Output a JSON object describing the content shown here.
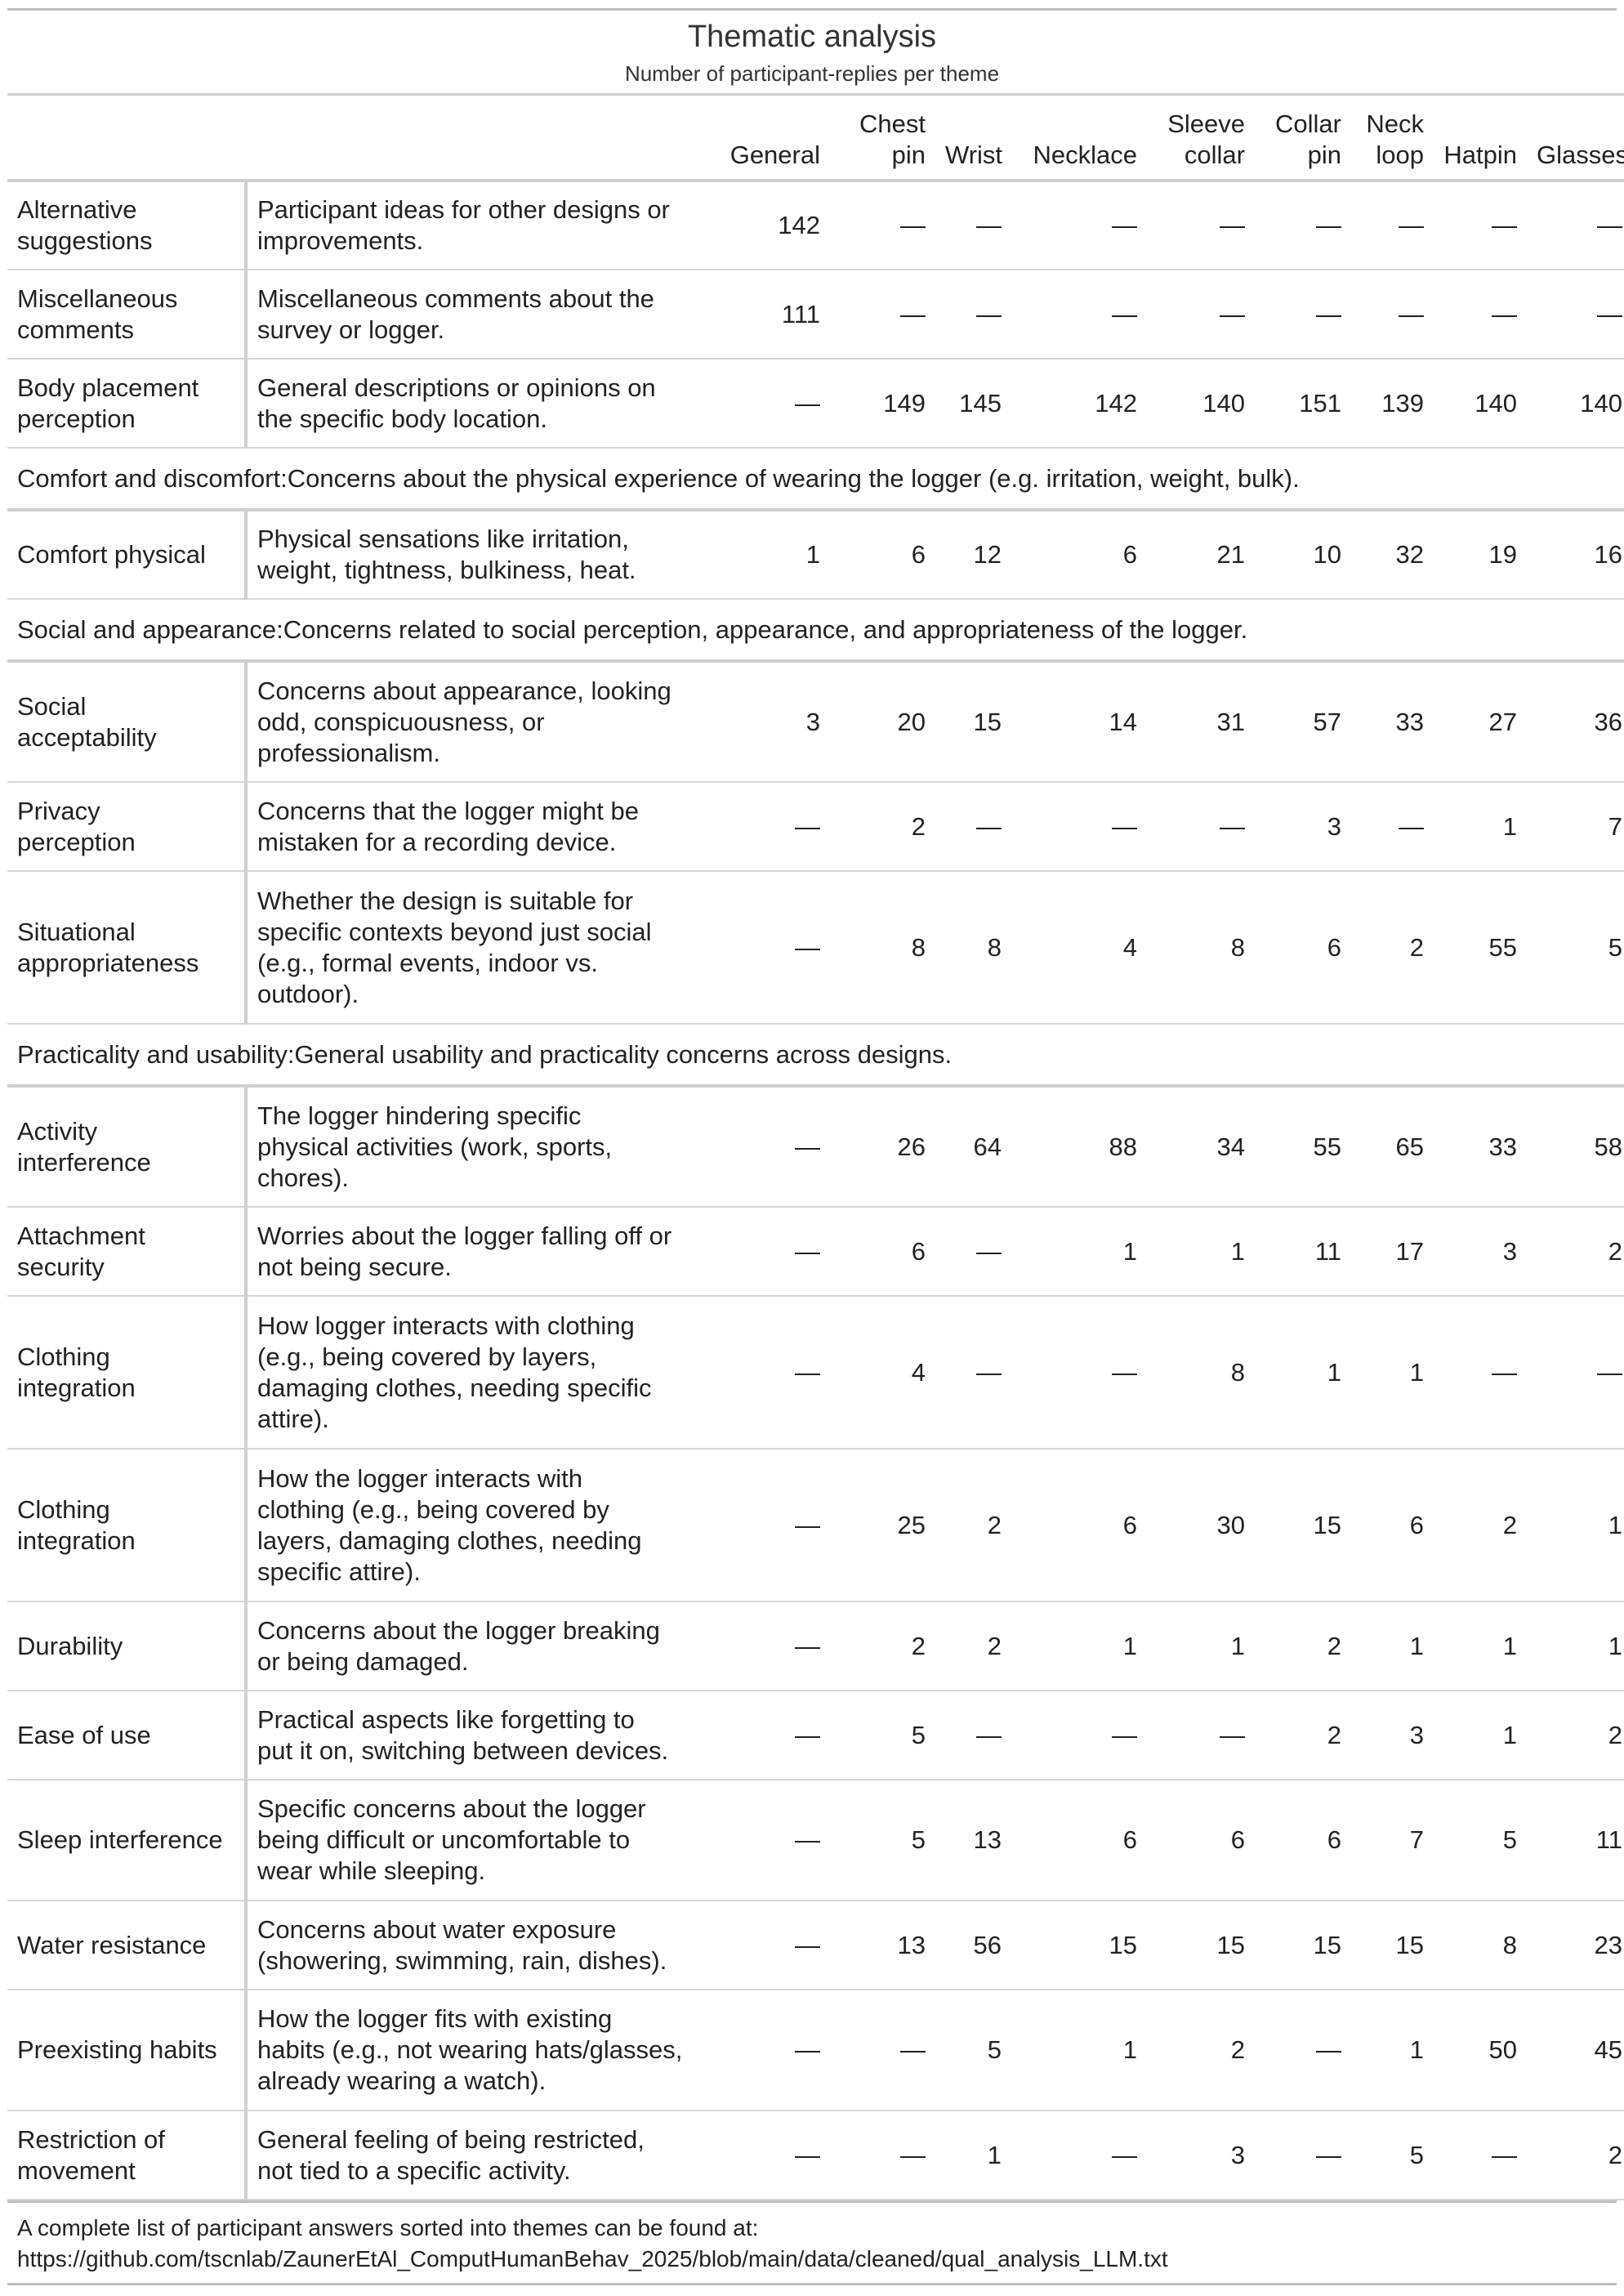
{
  "title": "Thematic analysis",
  "subtitle": "Number of participant-replies per theme",
  "columns": [
    {
      "l1": "",
      "l2": "General"
    },
    {
      "l1": "Chest",
      "l2": "pin"
    },
    {
      "l1": "",
      "l2": "Wrist"
    },
    {
      "l1": "",
      "l2": "Necklace"
    },
    {
      "l1": "Sleeve",
      "l2": "collar"
    },
    {
      "l1": "Collar",
      "l2": "pin"
    },
    {
      "l1": "Neck",
      "l2": "loop"
    },
    {
      "l1": "",
      "l2": "Hatpin"
    },
    {
      "l1": "",
      "l2": "Glasses"
    }
  ],
  "rows": [
    {
      "type": "row",
      "theme": [
        "Alternative",
        "suggestions"
      ],
      "desc": [
        "Participant ideas for other designs or",
        "improvements."
      ],
      "values": [
        "142",
        "—",
        "—",
        "—",
        "—",
        "—",
        "—",
        "—",
        "—"
      ]
    },
    {
      "type": "row",
      "theme": [
        "Miscellaneous",
        "comments"
      ],
      "desc": [
        "Miscellaneous comments about the",
        "survey or logger."
      ],
      "values": [
        "111",
        "—",
        "—",
        "—",
        "—",
        "—",
        "—",
        "—",
        "—"
      ]
    },
    {
      "type": "row",
      "theme": [
        "Body placement",
        "perception"
      ],
      "desc": [
        "General descriptions or opinions on",
        "the specific body location."
      ],
      "values": [
        "—",
        "149",
        "145",
        "142",
        "140",
        "151",
        "139",
        "140",
        "140"
      ]
    },
    {
      "type": "group",
      "text": "Comfort and discomfort:Concerns about the physical experience of wearing the logger (e.g. irritation, weight, bulk)."
    },
    {
      "type": "row",
      "theme": [
        "Comfort physical"
      ],
      "desc": [
        "Physical sensations like irritation,",
        "weight, tightness, bulkiness, heat."
      ],
      "values": [
        "1",
        "6",
        "12",
        "6",
        "21",
        "10",
        "32",
        "19",
        "16"
      ]
    },
    {
      "type": "group",
      "text": "Social and appearance:Concerns related to social perception, appearance, and appropriateness of the logger."
    },
    {
      "type": "row",
      "theme": [
        "Social",
        "acceptability"
      ],
      "desc": [
        "Concerns about appearance, looking",
        "odd, conspicuousness, or",
        "professionalism."
      ],
      "values": [
        "3",
        "20",
        "15",
        "14",
        "31",
        "57",
        "33",
        "27",
        "36"
      ]
    },
    {
      "type": "row",
      "theme": [
        "Privacy",
        "perception"
      ],
      "desc": [
        "Concerns that the logger might be",
        "mistaken for a recording device."
      ],
      "values": [
        "—",
        "2",
        "—",
        "—",
        "—",
        "3",
        "—",
        "1",
        "7"
      ]
    },
    {
      "type": "row",
      "theme": [
        "Situational",
        "appropriateness"
      ],
      "desc": [
        "Whether the design is suitable for",
        "specific contexts beyond just social",
        "(e.g., formal events, indoor vs.",
        "outdoor)."
      ],
      "values": [
        "—",
        "8",
        "8",
        "4",
        "8",
        "6",
        "2",
        "55",
        "5"
      ]
    },
    {
      "type": "group",
      "text": "Practicality and usability:General usability and practicality concerns across designs."
    },
    {
      "type": "row",
      "theme": [
        "Activity",
        "interference"
      ],
      "desc": [
        "The logger hindering specific",
        "physical activities (work, sports,",
        "chores)."
      ],
      "values": [
        "—",
        "26",
        "64",
        "88",
        "34",
        "55",
        "65",
        "33",
        "58"
      ]
    },
    {
      "type": "row",
      "theme": [
        "Attachment",
        "security"
      ],
      "desc": [
        "Worries about the logger falling off or",
        "not being secure."
      ],
      "values": [
        "—",
        "6",
        "—",
        "1",
        "1",
        "11",
        "17",
        "3",
        "2"
      ]
    },
    {
      "type": "row",
      "theme": [
        "Clothing",
        "integration"
      ],
      "desc": [
        "How logger interacts with clothing",
        "(e.g., being covered by layers,",
        "damaging clothes, needing specific",
        "attire)."
      ],
      "values": [
        "—",
        "4",
        "—",
        "—",
        "8",
        "1",
        "1",
        "—",
        "—"
      ]
    },
    {
      "type": "row",
      "theme": [
        "Clothing",
        "integration"
      ],
      "desc": [
        "How the logger interacts with",
        "clothing (e.g., being covered by",
        "layers, damaging clothes, needing",
        "specific attire)."
      ],
      "values": [
        "—",
        "25",
        "2",
        "6",
        "30",
        "15",
        "6",
        "2",
        "1"
      ]
    },
    {
      "type": "row",
      "theme": [
        "Durability"
      ],
      "desc": [
        "Concerns about the logger breaking",
        "or being damaged."
      ],
      "values": [
        "—",
        "2",
        "2",
        "1",
        "1",
        "2",
        "1",
        "1",
        "1"
      ]
    },
    {
      "type": "row",
      "theme": [
        "Ease of use"
      ],
      "desc": [
        "Practical aspects like forgetting to",
        "put it on, switching between devices."
      ],
      "values": [
        "—",
        "5",
        "—",
        "—",
        "—",
        "2",
        "3",
        "1",
        "2"
      ]
    },
    {
      "type": "row",
      "theme": [
        "Sleep interference"
      ],
      "desc": [
        "Specific concerns about the logger",
        "being difficult or uncomfortable to",
        "wear while sleeping."
      ],
      "values": [
        "—",
        "5",
        "13",
        "6",
        "6",
        "6",
        "7",
        "5",
        "11"
      ]
    },
    {
      "type": "row",
      "theme": [
        "Water resistance"
      ],
      "desc": [
        "Concerns about water exposure",
        "(showering, swimming, rain, dishes)."
      ],
      "values": [
        "—",
        "13",
        "56",
        "15",
        "15",
        "15",
        "15",
        "8",
        "23"
      ]
    },
    {
      "type": "row",
      "theme": [
        "Preexisting habits"
      ],
      "desc": [
        "How the logger fits with existing",
        "habits (e.g., not wearing hats/glasses,",
        "already wearing a watch)."
      ],
      "values": [
        "—",
        "—",
        "5",
        "1",
        "2",
        "—",
        "1",
        "50",
        "45"
      ]
    },
    {
      "type": "row",
      "theme": [
        "Restriction of",
        "movement"
      ],
      "desc": [
        "General feeling of being restricted,",
        "not tied to a specific activity."
      ],
      "values": [
        "—",
        "—",
        "1",
        "—",
        "3",
        "—",
        "5",
        "—",
        "2"
      ]
    }
  ],
  "footer": [
    "A complete list of participant answers sorted into themes can be found at:",
    "https://github.com/tscnlab/ZaunerEtAl_ComputHumanBehav_2025/blob/main/data/cleaned/qual_analysis_LLM.txt"
  ]
}
